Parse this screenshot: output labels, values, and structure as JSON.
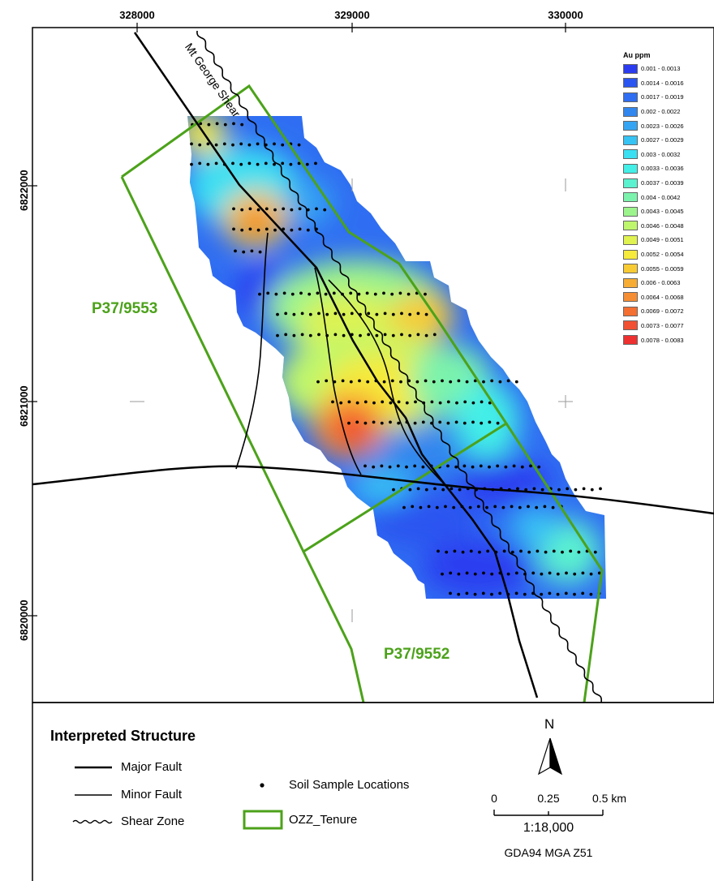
{
  "map": {
    "x_ticks": [
      "328000",
      "329000",
      "330000"
    ],
    "y_ticks": [
      "6822000",
      "6821000",
      "6820000"
    ],
    "shear_label": "Mt George Shear",
    "tenures": [
      "P37/9553",
      "P37/9552"
    ],
    "tenure_color": "#4ca21a"
  },
  "au_legend": {
    "title": "Au ppm",
    "classes": [
      {
        "label": "0.001 - 0.0013",
        "color": "#2b3cf0"
      },
      {
        "label": "0.0014 - 0.0016",
        "color": "#2a55f0"
      },
      {
        "label": "0.0017 - 0.0019",
        "color": "#2f6ef2"
      },
      {
        "label": "0.002 - 0.0022",
        "color": "#3187ee"
      },
      {
        "label": "0.0023 - 0.0026",
        "color": "#35a5f3"
      },
      {
        "label": "0.0027 - 0.0029",
        "color": "#37c3f4"
      },
      {
        "label": "0.003 - 0.0032",
        "color": "#3ae0f2"
      },
      {
        "label": "0.0033 - 0.0036",
        "color": "#43efe7"
      },
      {
        "label": "0.0037 - 0.0039",
        "color": "#5bf2cf"
      },
      {
        "label": "0.004 - 0.0042",
        "color": "#7cf3ac"
      },
      {
        "label": "0.0043 - 0.0045",
        "color": "#9cf58c"
      },
      {
        "label": "0.0046 - 0.0048",
        "color": "#bff76c"
      },
      {
        "label": "0.0049 - 0.0051",
        "color": "#dff24f"
      },
      {
        "label": "0.0052 - 0.0054",
        "color": "#f6ea3a"
      },
      {
        "label": "0.0055 - 0.0059",
        "color": "#f8cb34"
      },
      {
        "label": "0.006 - 0.0063",
        "color": "#f7ac33"
      },
      {
        "label": "0.0064 - 0.0068",
        "color": "#f68e33"
      },
      {
        "label": "0.0069 - 0.0072",
        "color": "#f46f32"
      },
      {
        "label": "0.0073 - 0.0077",
        "color": "#f25032"
      },
      {
        "label": "0.0078 - 0.0083",
        "color": "#ef3030"
      }
    ]
  },
  "legend": {
    "title": "Interpreted Structure",
    "major_fault": "Major Fault",
    "minor_fault": "Minor Fault",
    "shear_zone": "Shear Zone",
    "soil_samples": "Soil Sample Locations",
    "tenure": "OZZ_Tenure"
  },
  "north_arrow": "N",
  "scale_bar": {
    "labels": [
      "0",
      "0.25",
      "0.5 km"
    ],
    "ratio": "1:18,000",
    "datum": "GDA94 MGA Z51"
  }
}
